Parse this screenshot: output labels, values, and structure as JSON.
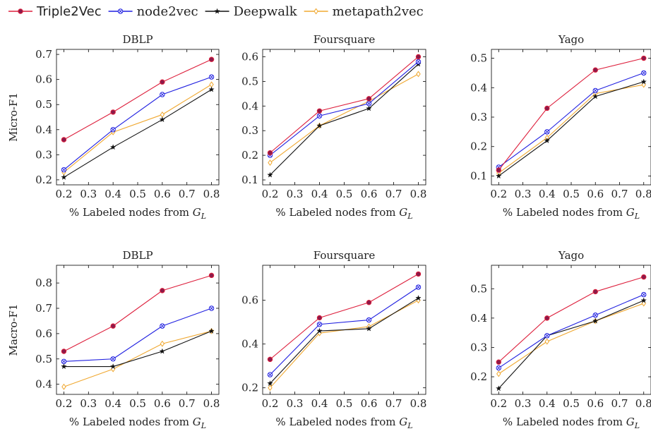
{
  "series_styles": [
    {
      "name": "Triple2Vec",
      "color": "#dd1f3c",
      "marker": "circle-filled",
      "marker_fill": "#8b1a4a"
    },
    {
      "name": "node2vec",
      "color": "#1f1fe0",
      "marker": "circle-x"
    },
    {
      "name": "Deepwalk",
      "color": "#111111",
      "marker": "star"
    },
    {
      "name": "metapath2vec",
      "color": "#f0a830",
      "marker": "diamond"
    }
  ],
  "chart_data": [
    {
      "type": "line",
      "title": "DBLP",
      "ylabel": "Micro-F1",
      "xlabel": "% Labeled nodes from G_L",
      "x": [
        0.2,
        0.4,
        0.6,
        0.8
      ],
      "xlim": [
        0.17,
        0.83
      ],
      "ylim": [
        0.18,
        0.72
      ],
      "xticks": [
        "0.2",
        "0.3",
        "0.4",
        "0.5",
        "0.6",
        "0.7",
        "0.8"
      ],
      "yticks": [
        "0.2",
        "0.3",
        "0.4",
        "0.5",
        "0.6",
        "0.7"
      ],
      "series": [
        {
          "name": "Triple2Vec",
          "values": [
            0.36,
            0.47,
            0.59,
            0.68
          ]
        },
        {
          "name": "node2vec",
          "values": [
            0.24,
            0.4,
            0.54,
            0.61
          ]
        },
        {
          "name": "Deepwalk",
          "values": [
            0.21,
            0.33,
            0.44,
            0.56
          ]
        },
        {
          "name": "metapath2vec",
          "values": [
            0.23,
            0.39,
            0.46,
            0.58
          ]
        }
      ]
    },
    {
      "type": "line",
      "title": "Foursquare",
      "ylabel": "",
      "xlabel": "% Labeled nodes from G_L",
      "x": [
        0.2,
        0.4,
        0.6,
        0.8
      ],
      "xlim": [
        0.17,
        0.83
      ],
      "ylim": [
        0.08,
        0.63
      ],
      "xticks": [
        "0.2",
        "0.3",
        "0.4",
        "0.5",
        "0.6",
        "0.7",
        "0.8"
      ],
      "yticks": [
        "0.1",
        "0.2",
        "0.3",
        "0.4",
        "0.5",
        "0.6"
      ],
      "series": [
        {
          "name": "Triple2Vec",
          "values": [
            0.21,
            0.38,
            0.43,
            0.6
          ]
        },
        {
          "name": "node2vec",
          "values": [
            0.2,
            0.36,
            0.41,
            0.58
          ]
        },
        {
          "name": "Deepwalk",
          "values": [
            0.12,
            0.32,
            0.39,
            0.57
          ]
        },
        {
          "name": "metapath2vec",
          "values": [
            0.17,
            0.32,
            0.42,
            0.53
          ]
        }
      ]
    },
    {
      "type": "line",
      "title": "Yago",
      "ylabel": "",
      "xlabel": "% Labeled nodes from G_L",
      "x": [
        0.2,
        0.4,
        0.6,
        0.8
      ],
      "xlim": [
        0.17,
        0.83
      ],
      "ylim": [
        0.07,
        0.53
      ],
      "xticks": [
        "0.2",
        "0.3",
        "0.4",
        "0.5",
        "0.6",
        "0.7",
        "0.8"
      ],
      "yticks": [
        "0.1",
        "0.2",
        "0.3",
        "0.4",
        "0.5"
      ],
      "series": [
        {
          "name": "Triple2Vec",
          "values": [
            0.12,
            0.33,
            0.46,
            0.5
          ]
        },
        {
          "name": "node2vec",
          "values": [
            0.13,
            0.25,
            0.39,
            0.45
          ]
        },
        {
          "name": "Deepwalk",
          "values": [
            0.1,
            0.22,
            0.37,
            0.42
          ]
        },
        {
          "name": "metapath2vec",
          "values": [
            0.11,
            0.23,
            0.38,
            0.41
          ]
        }
      ]
    },
    {
      "type": "line",
      "title": "DBLP",
      "ylabel": "Macro-F1",
      "xlabel": "% Labeled nodes from G_L",
      "x": [
        0.2,
        0.4,
        0.6,
        0.8
      ],
      "xlim": [
        0.17,
        0.83
      ],
      "ylim": [
        0.36,
        0.87
      ],
      "xticks": [
        "0.2",
        "0.3",
        "0.4",
        "0.5",
        "0.6",
        "0.7",
        "0.8"
      ],
      "yticks": [
        "0.4",
        "0.5",
        "0.6",
        "0.7",
        "0.8"
      ],
      "series": [
        {
          "name": "Triple2Vec",
          "values": [
            0.53,
            0.63,
            0.77,
            0.83
          ]
        },
        {
          "name": "node2vec",
          "values": [
            0.49,
            0.5,
            0.63,
            0.7
          ]
        },
        {
          "name": "Deepwalk",
          "values": [
            0.47,
            0.47,
            0.53,
            0.61
          ]
        },
        {
          "name": "metapath2vec",
          "values": [
            0.39,
            0.46,
            0.56,
            0.61
          ]
        }
      ]
    },
    {
      "type": "line",
      "title": "Foursquare",
      "ylabel": "",
      "xlabel": "% Labeled nodes from G_L",
      "x": [
        0.2,
        0.4,
        0.6,
        0.8
      ],
      "xlim": [
        0.17,
        0.83
      ],
      "ylim": [
        0.17,
        0.76
      ],
      "xticks": [
        "0.2",
        "0.3",
        "0.4",
        "0.5",
        "0.6",
        "0.7",
        "0.8"
      ],
      "yticks": [
        "0.2",
        "0.4",
        "0.6"
      ],
      "series": [
        {
          "name": "Triple2Vec",
          "values": [
            0.33,
            0.52,
            0.59,
            0.72
          ]
        },
        {
          "name": "node2vec",
          "values": [
            0.26,
            0.49,
            0.51,
            0.66
          ]
        },
        {
          "name": "Deepwalk",
          "values": [
            0.22,
            0.46,
            0.47,
            0.61
          ]
        },
        {
          "name": "metapath2vec",
          "values": [
            0.2,
            0.45,
            0.48,
            0.6
          ]
        }
      ]
    },
    {
      "type": "line",
      "title": "Yago",
      "ylabel": "",
      "xlabel": "% Labeled nodes from G_L",
      "x": [
        0.2,
        0.4,
        0.6,
        0.8
      ],
      "xlim": [
        0.17,
        0.83
      ],
      "ylim": [
        0.14,
        0.58
      ],
      "xticks": [
        "0.2",
        "0.3",
        "0.4",
        "0.5",
        "0.6",
        "0.7",
        "0.8"
      ],
      "yticks": [
        "0.2",
        "0.3",
        "0.4",
        "0.5"
      ],
      "series": [
        {
          "name": "Triple2Vec",
          "values": [
            0.25,
            0.4,
            0.49,
            0.54
          ]
        },
        {
          "name": "node2vec",
          "values": [
            0.23,
            0.34,
            0.41,
            0.48
          ]
        },
        {
          "name": "Deepwalk",
          "values": [
            0.16,
            0.34,
            0.39,
            0.46
          ]
        },
        {
          "name": "metapath2vec",
          "values": [
            0.21,
            0.32,
            0.39,
            0.45
          ]
        }
      ]
    }
  ]
}
